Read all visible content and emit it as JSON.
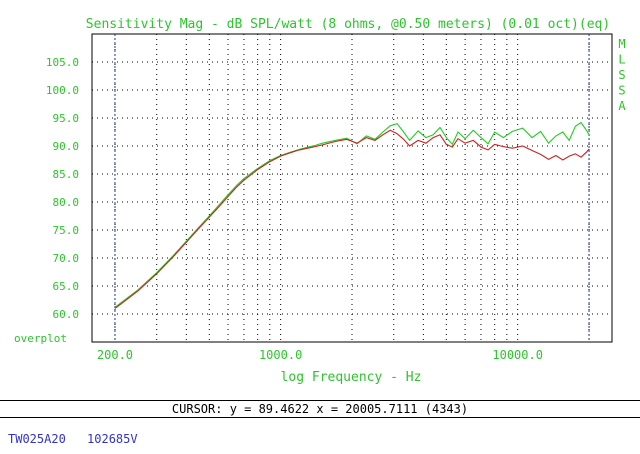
{
  "chart_data": {
    "type": "line",
    "title": "Sensitivity Mag - dB SPL/watt (8 ohms, @0.50 meters) (0.01 oct)(eq)",
    "xlabel": "log Frequency - Hz",
    "ylabel": "",
    "xscale": "log",
    "xlim": [
      160,
      25000
    ],
    "ylim": [
      55,
      110
    ],
    "xticks": [
      {
        "value": 200,
        "label": "200.0"
      },
      {
        "value": 1000,
        "label": "1000.0"
      },
      {
        "value": 10000,
        "label": "10000.0"
      }
    ],
    "yticks": [
      {
        "value": 105,
        "label": "105.0"
      },
      {
        "value": 100,
        "label": "100.0"
      },
      {
        "value": 95,
        "label": "95.0"
      },
      {
        "value": 90,
        "label": "90.0"
      },
      {
        "value": 85,
        "label": "85.0"
      },
      {
        "value": 80,
        "label": "80.0"
      },
      {
        "value": 75,
        "label": "75.0"
      },
      {
        "value": 70,
        "label": "70.0"
      },
      {
        "value": 65,
        "label": "65.0"
      },
      {
        "value": 60,
        "label": "60.0"
      }
    ],
    "bottom_axis_label": "overplot",
    "side_label": "MLSSA",
    "markers": [
      200,
      20005.7
    ],
    "grid": true,
    "series": [
      {
        "color": "#22cc22",
        "points": [
          [
            200,
            61.2
          ],
          [
            250,
            64.3
          ],
          [
            300,
            67.4
          ],
          [
            350,
            70.3
          ],
          [
            400,
            73.0
          ],
          [
            450,
            75.4
          ],
          [
            500,
            77.5
          ],
          [
            550,
            79.5
          ],
          [
            600,
            81.3
          ],
          [
            650,
            82.9
          ],
          [
            700,
            84.2
          ],
          [
            800,
            86.0
          ],
          [
            900,
            87.4
          ],
          [
            1000,
            88.3
          ],
          [
            1100,
            88.9
          ],
          [
            1200,
            89.4
          ],
          [
            1300,
            89.8
          ],
          [
            1400,
            90.1
          ],
          [
            1500,
            90.5
          ],
          [
            1700,
            91.0
          ],
          [
            1900,
            91.4
          ],
          [
            2100,
            90.4
          ],
          [
            2300,
            91.8
          ],
          [
            2500,
            91.2
          ],
          [
            2700,
            92.5
          ],
          [
            2900,
            93.6
          ],
          [
            3100,
            94.0
          ],
          [
            3300,
            92.5
          ],
          [
            3500,
            91.0
          ],
          [
            3800,
            92.7
          ],
          [
            4100,
            91.5
          ],
          [
            4400,
            92.0
          ],
          [
            4700,
            93.3
          ],
          [
            5000,
            91.5
          ],
          [
            5300,
            90.3
          ],
          [
            5600,
            92.5
          ],
          [
            6000,
            91.3
          ],
          [
            6500,
            92.8
          ],
          [
            7000,
            91.5
          ],
          [
            7500,
            90.4
          ],
          [
            8000,
            92.5
          ],
          [
            8700,
            91.5
          ],
          [
            9500,
            92.6
          ],
          [
            10500,
            93.2
          ],
          [
            11500,
            91.5
          ],
          [
            12500,
            92.6
          ],
          [
            13500,
            90.5
          ],
          [
            14500,
            91.8
          ],
          [
            15500,
            92.5
          ],
          [
            16500,
            91.0
          ],
          [
            17500,
            93.5
          ],
          [
            18500,
            94.2
          ],
          [
            19500,
            92.8
          ],
          [
            20005.7,
            92.0
          ]
        ]
      },
      {
        "color": "#cc2222",
        "points": [
          [
            200,
            61.0
          ],
          [
            250,
            64.1
          ],
          [
            300,
            67.2
          ],
          [
            350,
            70.1
          ],
          [
            400,
            72.8
          ],
          [
            450,
            75.2
          ],
          [
            500,
            77.3
          ],
          [
            550,
            79.2
          ],
          [
            600,
            81.0
          ],
          [
            650,
            82.6
          ],
          [
            700,
            83.9
          ],
          [
            800,
            85.8
          ],
          [
            900,
            87.2
          ],
          [
            1000,
            88.2
          ],
          [
            1100,
            88.8
          ],
          [
            1200,
            89.3
          ],
          [
            1300,
            89.6
          ],
          [
            1400,
            89.9
          ],
          [
            1500,
            90.2
          ],
          [
            1700,
            90.8
          ],
          [
            1900,
            91.2
          ],
          [
            2100,
            90.5
          ],
          [
            2300,
            91.5
          ],
          [
            2500,
            91.0
          ],
          [
            2700,
            92.0
          ],
          [
            2900,
            92.8
          ],
          [
            3100,
            92.2
          ],
          [
            3300,
            91.2
          ],
          [
            3500,
            90.0
          ],
          [
            3800,
            91.0
          ],
          [
            4100,
            90.5
          ],
          [
            4400,
            91.5
          ],
          [
            4700,
            92.0
          ],
          [
            5000,
            90.3
          ],
          [
            5300,
            89.8
          ],
          [
            5600,
            91.3
          ],
          [
            6000,
            90.5
          ],
          [
            6500,
            91.0
          ],
          [
            7000,
            89.8
          ],
          [
            7500,
            89.3
          ],
          [
            8000,
            90.3
          ],
          [
            8700,
            89.9
          ],
          [
            9500,
            89.6
          ],
          [
            10500,
            90.0
          ],
          [
            11500,
            89.2
          ],
          [
            12500,
            88.5
          ],
          [
            13500,
            87.6
          ],
          [
            14500,
            88.3
          ],
          [
            15500,
            87.5
          ],
          [
            16500,
            88.2
          ],
          [
            17500,
            88.6
          ],
          [
            18500,
            88.0
          ],
          [
            19500,
            88.9
          ],
          [
            20005.7,
            89.46
          ]
        ]
      }
    ]
  },
  "cursor_readout": "CURSOR: y = 89.4622 x = 20005.7111 (4343)",
  "footer": {
    "model": "TW025A20",
    "serial": "102685V"
  }
}
